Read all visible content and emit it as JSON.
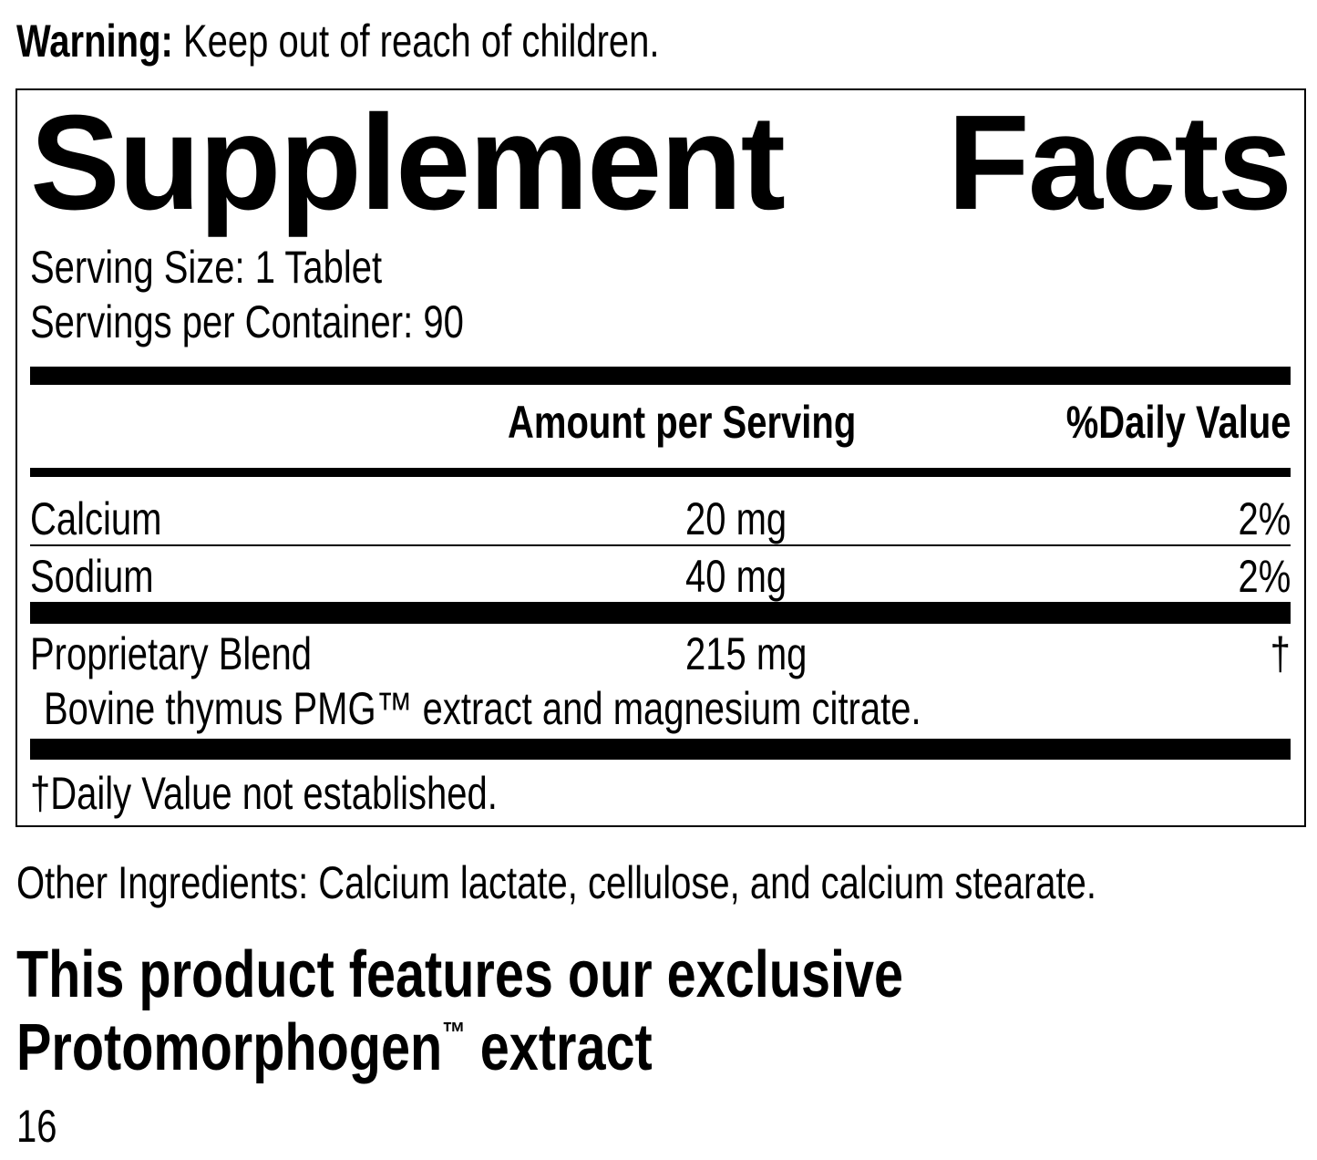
{
  "warning": {
    "label": "Warning:",
    "text": "Keep out of reach of children."
  },
  "facts": {
    "title": "Supplement Facts",
    "serving_size": "Serving Size: 1 Tablet",
    "servings_per_container": "Servings per Container: 90",
    "headers": {
      "amount": "Amount per Serving",
      "daily_value": "%Daily Value"
    },
    "rows": [
      [
        "Calcium",
        "20 mg",
        "2%"
      ],
      [
        "Sodium",
        "40 mg",
        "2%"
      ],
      [
        "Proprietary Blend",
        "215 mg",
        "†"
      ]
    ],
    "blend_note": "Bovine thymus PMG™ extract and magnesium citrate.",
    "footnote": "†Daily Value not established."
  },
  "other_ingredients": "Other Ingredients: Calcium lactate, cellulose, and calcium stearate.",
  "tagline": {
    "line1": "This product features our exclusive",
    "brand": "Protomorphogen",
    "trademark": "™",
    "rest": "extract"
  },
  "page_number": "16"
}
